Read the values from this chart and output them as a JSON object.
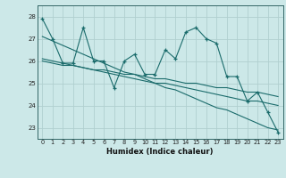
{
  "title": "",
  "xlabel": "Humidex (Indice chaleur)",
  "ylabel": "",
  "bg_color": "#cce8e8",
  "grid_color": "#b0d0d0",
  "line_color": "#1a6b6b",
  "xlim": [
    -0.5,
    23.5
  ],
  "ylim": [
    22.5,
    28.5
  ],
  "xticks": [
    0,
    1,
    2,
    3,
    4,
    5,
    6,
    7,
    8,
    9,
    10,
    11,
    12,
    13,
    14,
    15,
    16,
    17,
    18,
    19,
    20,
    21,
    22,
    23
  ],
  "yticks": [
    23,
    24,
    25,
    26,
    27,
    28
  ],
  "main_y": [
    27.9,
    27.0,
    25.9,
    25.9,
    27.5,
    26.0,
    26.0,
    24.8,
    26.0,
    26.3,
    25.4,
    25.4,
    26.5,
    26.1,
    27.3,
    27.5,
    27.0,
    26.8,
    25.3,
    25.3,
    24.2,
    24.6,
    23.7,
    22.8
  ],
  "trend1_y": [
    27.1,
    26.9,
    26.7,
    26.5,
    26.3,
    26.1,
    25.9,
    25.7,
    25.5,
    25.4,
    25.2,
    25.0,
    24.8,
    24.7,
    24.5,
    24.3,
    24.1,
    23.9,
    23.8,
    23.6,
    23.4,
    23.2,
    23.0,
    22.9
  ],
  "trend2_y": [
    26.1,
    26.0,
    25.9,
    25.8,
    25.7,
    25.6,
    25.5,
    25.4,
    25.3,
    25.2,
    25.1,
    25.0,
    25.0,
    24.9,
    24.8,
    24.7,
    24.6,
    24.5,
    24.4,
    24.3,
    24.2,
    24.2,
    24.1,
    24.0
  ],
  "trend3_y": [
    26.0,
    25.9,
    25.8,
    25.8,
    25.7,
    25.6,
    25.6,
    25.5,
    25.4,
    25.4,
    25.3,
    25.2,
    25.2,
    25.1,
    25.0,
    25.0,
    24.9,
    24.8,
    24.8,
    24.7,
    24.6,
    24.6,
    24.5,
    24.4
  ]
}
